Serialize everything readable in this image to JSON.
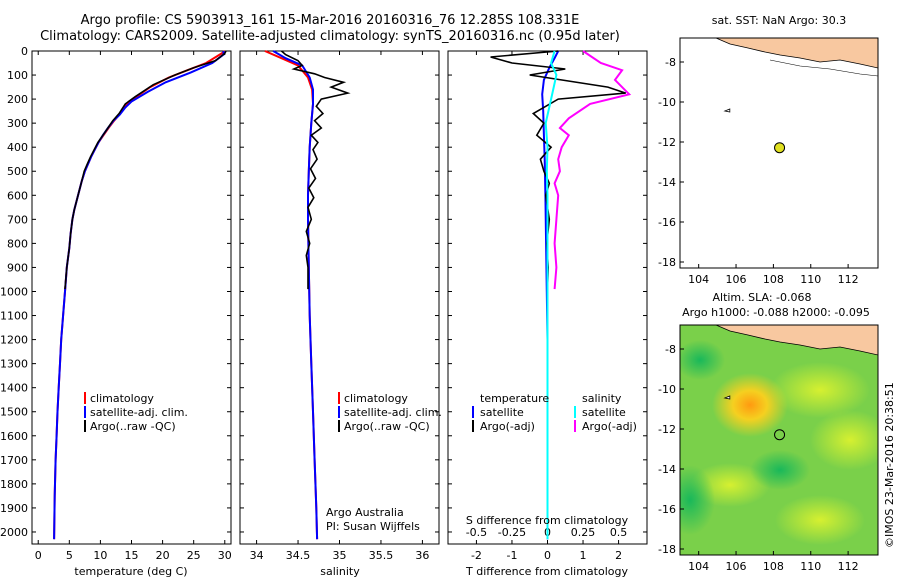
{
  "header": {
    "title_line1": "Argo profile: CS 5903913_161 15-Mar-2016 20160316_76 12.285S 108.331E",
    "title_line2": "Climatology: CARS2009. Satellite-adjusted climatology: synTS_20160316.nc (0.95d later)"
  },
  "colors": {
    "climatology": "#ff0000",
    "satellite": "#0000ff",
    "argo": "#000000",
    "sal_sat": "#00ffff",
    "sal_argo": "#ff00ff",
    "land": "#f8c8a0",
    "float_marker": "#e0e020"
  },
  "depth_axis": {
    "ticks": [
      0,
      100,
      200,
      300,
      400,
      500,
      600,
      700,
      800,
      900,
      1000,
      1100,
      1200,
      1300,
      1400,
      1500,
      1600,
      1700,
      1800,
      1900,
      2000
    ],
    "ylim": [
      0,
      2050
    ]
  },
  "chart_data": [
    {
      "type": "line",
      "id": "temperature",
      "xlabel": "temperature (deg C)",
      "xlim": [
        -1,
        31
      ],
      "xticks": [
        0,
        5,
        10,
        15,
        20,
        25,
        30
      ],
      "legend": [
        "climatology",
        "satellite-adj. clim.",
        "Argo(..raw -QC)"
      ],
      "series": [
        {
          "name": "climatology",
          "color": "#ff0000",
          "x": [
            30.0,
            29.5,
            27,
            24,
            21,
            18,
            15.8,
            14.3,
            13.2,
            12.2,
            11.3,
            10.5,
            9.7,
            9.1,
            8.5,
            8.0,
            7.5,
            7.0,
            6.6,
            6.2,
            5.8,
            5.5,
            5.2,
            5.0,
            4.6,
            4.3,
            4.0,
            3.7,
            3.5,
            3.3,
            3.1,
            2.95,
            2.8,
            2.65,
            2.55
          ],
          "depth": [
            0,
            10,
            50,
            80,
            110,
            150,
            190,
            220,
            260,
            290,
            320,
            350,
            380,
            410,
            440,
            470,
            500,
            540,
            580,
            620,
            660,
            700,
            760,
            820,
            900,
            1000,
            1100,
            1200,
            1300,
            1400,
            1500,
            1600,
            1700,
            1850,
            2030
          ]
        },
        {
          "name": "satellite-adj. clim.",
          "color": "#0000ff",
          "x": [
            29.8,
            29.8,
            28,
            24.5,
            20.5,
            17.6,
            15.0,
            14.0,
            13.1,
            12.1,
            11.2,
            10.4,
            9.7,
            9.1,
            8.5,
            8.0,
            7.5,
            7.0,
            6.6,
            6.2,
            5.8,
            5.5,
            5.2,
            5.0,
            4.6,
            4.3,
            4.0,
            3.7,
            3.5,
            3.3,
            3.1,
            2.95,
            2.8,
            2.65,
            2.55
          ],
          "depth": [
            0,
            15,
            50,
            90,
            130,
            170,
            210,
            235,
            265,
            290,
            320,
            350,
            380,
            410,
            440,
            470,
            500,
            540,
            580,
            620,
            660,
            700,
            760,
            820,
            900,
            1000,
            1100,
            1200,
            1300,
            1400,
            1500,
            1600,
            1700,
            1850,
            2030
          ]
        },
        {
          "name": "Argo(..raw -QC)",
          "color": "#000000",
          "x": [
            30.2,
            30.0,
            28.5,
            25,
            22,
            18.5,
            15.6,
            14.0,
            13.0,
            12.0,
            11.2,
            10.4,
            9.6,
            9.0,
            8.4,
            7.9,
            7.4,
            7.0,
            6.6,
            6.2,
            5.8,
            5.5,
            5.2,
            5.0,
            4.6,
            4.3
          ],
          "depth": [
            0,
            10,
            40,
            70,
            100,
            140,
            190,
            220,
            260,
            290,
            320,
            350,
            380,
            410,
            440,
            470,
            500,
            540,
            580,
            620,
            660,
            700,
            760,
            820,
            900,
            990
          ]
        }
      ]
    },
    {
      "type": "line",
      "id": "salinity",
      "xlabel": "salinity",
      "xlim": [
        33.8,
        36.2
      ],
      "xticks": [
        34,
        34.5,
        35,
        35.5,
        36
      ],
      "legend": [
        "climatology",
        "satellite-adj. clim.",
        "Argo(..raw -QC)"
      ],
      "note": [
        "Argo Australia",
        "PI: Susan Wijffels"
      ],
      "series": [
        {
          "name": "climatology",
          "color": "#ff0000",
          "x": [
            34.1,
            34.3,
            34.5,
            34.62,
            34.67,
            34.68,
            34.66,
            34.64,
            34.63,
            34.62,
            34.62,
            34.63,
            34.64,
            34.66,
            34.68,
            34.7,
            34.72,
            34.73
          ],
          "depth": [
            0,
            30,
            60,
            110,
            160,
            220,
            300,
            400,
            500,
            600,
            700,
            900,
            1100,
            1300,
            1500,
            1700,
            1900,
            2030
          ]
        },
        {
          "name": "satellite-adj. clim.",
          "color": "#0000ff",
          "x": [
            34.2,
            34.35,
            34.55,
            34.64,
            34.68,
            34.68,
            34.66,
            34.64,
            34.63,
            34.62,
            34.62,
            34.63,
            34.64,
            34.66,
            34.68,
            34.7,
            34.72,
            34.73
          ],
          "depth": [
            0,
            30,
            60,
            110,
            160,
            220,
            300,
            400,
            500,
            600,
            700,
            900,
            1100,
            1300,
            1500,
            1700,
            1900,
            2030
          ]
        },
        {
          "name": "Argo(..raw -QC)",
          "color": "#000000",
          "x": [
            34.3,
            34.35,
            34.5,
            34.55,
            34.45,
            34.7,
            34.82,
            35.05,
            34.9,
            35.1,
            34.78,
            34.72,
            34.8,
            34.7,
            34.78,
            34.66,
            34.74,
            34.68,
            34.73,
            34.65,
            34.71,
            34.63,
            34.69,
            34.62,
            34.66,
            34.6,
            34.64,
            34.6,
            34.62,
            34.62
          ],
          "depth": [
            0,
            15,
            40,
            60,
            75,
            95,
            110,
            130,
            150,
            175,
            200,
            230,
            260,
            290,
            320,
            350,
            380,
            410,
            450,
            490,
            530,
            570,
            610,
            650,
            700,
            750,
            800,
            850,
            900,
            990
          ]
        }
      ]
    },
    {
      "type": "line",
      "id": "difference",
      "xlabel": "T difference from climatology",
      "xlabel2": "S difference from climatology",
      "xlim": [
        -2.8,
        2.8
      ],
      "xticks": [
        -2,
        -1,
        0,
        1,
        2
      ],
      "x2ticks": [
        -0.5,
        -0.25,
        0,
        0.25,
        0.5
      ],
      "x2ticks_label": [
        "-0.5",
        "-0.25",
        "0",
        "0.25",
        "0.5"
      ],
      "legend_t": [
        "temperature",
        "satellite",
        "Argo(-adj)"
      ],
      "legend_s": [
        "salinity",
        "satellite",
        "Argo(-adj)"
      ],
      "series": [
        {
          "name": "satellite",
          "color": "#0000ff",
          "x": [
            0.3,
            0.2,
            0.05,
            -0.1,
            -0.15,
            -0.12,
            -0.1,
            -0.08,
            -0.06,
            -0.04,
            -0.02,
            0,
            0.0,
            0.0,
            0.0,
            0.0
          ],
          "depth": [
            0,
            30,
            70,
            120,
            180,
            250,
            350,
            450,
            600,
            800,
            1000,
            1200,
            1400,
            1600,
            1800,
            2030
          ]
        },
        {
          "name": "Argo(-adj)",
          "color": "#000000",
          "x": [
            0.3,
            -1.6,
            -1.0,
            0.5,
            -0.5,
            1.7,
            2.2,
            0.3,
            -0.4,
            -0.1,
            -0.3,
            0.1,
            -0.2,
            -0.1,
            0.05,
            -0.05,
            0.0,
            0.05,
            -0.02,
            0.02,
            0.0
          ],
          "depth": [
            0,
            25,
            50,
            75,
            100,
            150,
            175,
            200,
            260,
            300,
            350,
            400,
            450,
            500,
            550,
            600,
            650,
            700,
            800,
            900,
            990
          ]
        },
        {
          "name": "salinity satellite",
          "color": "#00ffff",
          "x": [
            0.2,
            0.1,
            0.25,
            0.1,
            -0.05,
            0.0,
            -0.02,
            0.0,
            0.0,
            0.0,
            0.0,
            0.0,
            0.0
          ],
          "depth": [
            0,
            50,
            100,
            200,
            300,
            400,
            500,
            600,
            800,
            1000,
            1400,
            1800,
            2030
          ]
        },
        {
          "name": "salinity Argo(-adj)",
          "color": "#ff00ff",
          "x": [
            1.0,
            1.5,
            2.1,
            1.9,
            2.3,
            1.2,
            0.6,
            0.35,
            0.6,
            0.4,
            0.3,
            0.35,
            0.2,
            0.3,
            0.25,
            0.2,
            0.25,
            0.2
          ],
          "depth": [
            0,
            50,
            80,
            120,
            180,
            220,
            280,
            320,
            350,
            400,
            450,
            500,
            550,
            600,
            700,
            800,
            900,
            990
          ]
        }
      ]
    }
  ],
  "map_sst": {
    "title": "sat. SST: NaN Argo: 30.3",
    "xticks": [
      104,
      106,
      108,
      110,
      112
    ],
    "yticks": [
      -8,
      -10,
      -12,
      -14,
      -16,
      -18
    ],
    "xlim": [
      103,
      113.6
    ],
    "ylim": [
      -18.3,
      -6.8
    ],
    "float": {
      "lon": 108.33,
      "lat": -12.285
    }
  },
  "map_sla": {
    "title1": "Altim. SLA: -0.068",
    "title2": "Argo h1000: -0.088 h2000: -0.095",
    "xticks": [
      104,
      106,
      108,
      110,
      112
    ],
    "yticks": [
      -8,
      -10,
      -12,
      -14,
      -16,
      -18
    ],
    "xlim": [
      103,
      113.6
    ],
    "ylim": [
      -18.3,
      -6.8
    ],
    "float": {
      "lon": 108.33,
      "lat": -12.285
    }
  },
  "footer": {
    "credit": "©IMOS 23-Mar-2016 20:38:51"
  }
}
